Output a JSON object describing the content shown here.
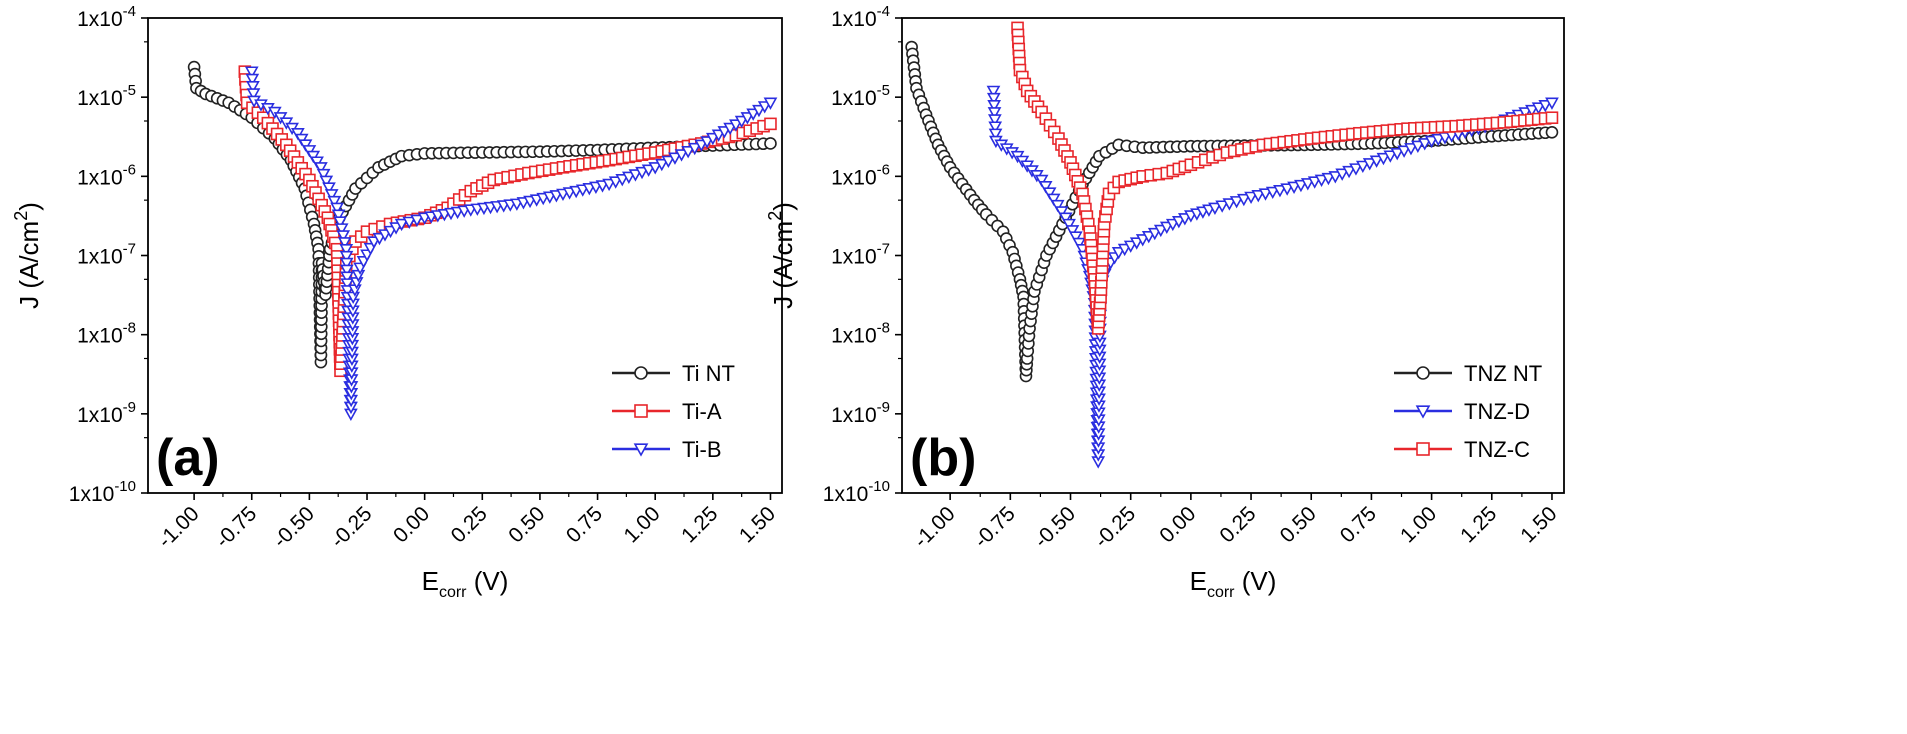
{
  "figure": {
    "background": "#ffffff",
    "colors": {
      "black": "#222222",
      "red": "#e8262b",
      "blue": "#2a2ee0"
    }
  },
  "chart_data": [
    {
      "type": "line",
      "panel_label": "(a)",
      "title": "",
      "xlabel": {
        "main": "E",
        "sub": "corr",
        "unit": " (V)"
      },
      "ylabel": {
        "prefix": "J (A/cm",
        "sup": "2",
        "suffix": ")"
      },
      "xlim": [
        -1.2,
        1.55
      ],
      "ylim_log10": [
        -10,
        -4
      ],
      "yscale": "log",
      "x_ticks": [
        -1.0,
        -0.75,
        -0.5,
        -0.25,
        0.0,
        0.25,
        0.5,
        0.75,
        1.0,
        1.25,
        1.5
      ],
      "x_tick_labels": [
        "-1.00",
        "-0.75",
        "-0.50",
        "-0.25",
        "0.00",
        "0.25",
        "0.50",
        "0.75",
        "1.00",
        "1.25",
        "1.50"
      ],
      "y_ticks_log10": [
        -10,
        -9,
        -8,
        -7,
        -6,
        -5,
        -4
      ],
      "y_tick_labels": [
        {
          "base": "1x10",
          "exp": "-10"
        },
        {
          "base": "1x10",
          "exp": "-9"
        },
        {
          "base": "1x10",
          "exp": "-8"
        },
        {
          "base": "1x10",
          "exp": "-7"
        },
        {
          "base": "1x10",
          "exp": "-6"
        },
        {
          "base": "1x10",
          "exp": "-5"
        },
        {
          "base": "1x10",
          "exp": "-4"
        }
      ],
      "legend_position": "bottom-right",
      "series": [
        {
          "name": "Ti NT",
          "color": "#222222",
          "marker": "circle",
          "points": [
            [
              -1.0,
              2.4e-05
            ],
            [
              -0.99,
              1.3e-05
            ],
            [
              -0.95,
              1.1e-05
            ],
            [
              -0.85,
              8.5e-06
            ],
            [
              -0.75,
              5.5e-06
            ],
            [
              -0.65,
              3e-06
            ],
            [
              -0.58,
              1.6e-06
            ],
            [
              -0.52,
              7e-07
            ],
            [
              -0.48,
              2.5e-07
            ],
            [
              -0.46,
              1.2e-07
            ],
            [
              -0.45,
              4.5e-09
            ],
            [
              -0.445,
              8e-08
            ],
            [
              -0.43,
              3.2e-08
            ],
            [
              -0.41,
              1.2e-07
            ],
            [
              -0.37,
              3e-07
            ],
            [
              -0.3,
              7e-07
            ],
            [
              -0.2,
              1.3e-06
            ],
            [
              -0.1,
              1.8e-06
            ],
            [
              0.0,
              1.95e-06
            ],
            [
              0.25,
              2e-06
            ],
            [
              0.5,
              2.05e-06
            ],
            [
              0.75,
              2.15e-06
            ],
            [
              1.0,
              2.3e-06
            ],
            [
              1.25,
              2.45e-06
            ],
            [
              1.5,
              2.6e-06
            ]
          ]
        },
        {
          "name": "Ti-A",
          "color": "#e8262b",
          "marker": "square",
          "points": [
            [
              -0.78,
              2.1e-05
            ],
            [
              -0.77,
              8.5e-06
            ],
            [
              -0.7,
              5.5e-06
            ],
            [
              -0.6,
              2.5e-06
            ],
            [
              -0.5,
              9e-07
            ],
            [
              -0.42,
              3e-07
            ],
            [
              -0.38,
              1.2e-07
            ],
            [
              -0.365,
              3.5e-09
            ],
            [
              -0.355,
              1.2e-08
            ],
            [
              -0.34,
              8e-08
            ],
            [
              -0.3,
              1.5e-07
            ],
            [
              -0.25,
              2e-07
            ],
            [
              -0.15,
              2.5e-07
            ],
            [
              0.0,
              3e-07
            ],
            [
              0.1,
              4e-07
            ],
            [
              0.2,
              6.5e-07
            ],
            [
              0.3,
              9e-07
            ],
            [
              0.45,
              1.1e-06
            ],
            [
              0.6,
              1.3e-06
            ],
            [
              0.8,
              1.6e-06
            ],
            [
              1.0,
              2e-06
            ],
            [
              1.2,
              2.6e-06
            ],
            [
              1.35,
              3.3e-06
            ],
            [
              1.5,
              4.6e-06
            ]
          ]
        },
        {
          "name": "Ti-B",
          "color": "#2a2ee0",
          "marker": "triangle-down",
          "points": [
            [
              -0.75,
              2.1e-05
            ],
            [
              -0.74,
              9e-06
            ],
            [
              -0.65,
              6.5e-06
            ],
            [
              -0.55,
              3.5e-06
            ],
            [
              -0.45,
              1.3e-06
            ],
            [
              -0.38,
              4e-07
            ],
            [
              -0.34,
              1.2e-07
            ],
            [
              -0.32,
              1e-09
            ],
            [
              -0.31,
              3e-08
            ],
            [
              -0.28,
              7e-08
            ],
            [
              -0.22,
              1.5e-07
            ],
            [
              -0.1,
              2.5e-07
            ],
            [
              0.0,
              3e-07
            ],
            [
              0.2,
              3.8e-07
            ],
            [
              0.4,
              4.5e-07
            ],
            [
              0.6,
              6e-07
            ],
            [
              0.8,
              8e-07
            ],
            [
              1.0,
              1.3e-06
            ],
            [
              1.2,
              2.5e-06
            ],
            [
              1.35,
              4.5e-06
            ],
            [
              1.5,
              8.5e-06
            ]
          ]
        }
      ]
    },
    {
      "type": "line",
      "panel_label": "(b)",
      "title": "",
      "xlabel": {
        "main": "E",
        "sub": "corr",
        "unit": " (V)"
      },
      "ylabel": {
        "prefix": "J (A/cm",
        "sup": "2",
        "suffix": ")"
      },
      "xlim": [
        -1.2,
        1.55
      ],
      "ylim_log10": [
        -10,
        -4
      ],
      "yscale": "log",
      "x_ticks": [
        -1.0,
        -0.75,
        -0.5,
        -0.25,
        0.0,
        0.25,
        0.5,
        0.75,
        1.0,
        1.25,
        1.5
      ],
      "x_tick_labels": [
        "-1.00",
        "-0.75",
        "-0.50",
        "-0.25",
        "0.00",
        "0.25",
        "0.50",
        "0.75",
        "1.00",
        "1.25",
        "1.50"
      ],
      "y_ticks_log10": [
        -10,
        -9,
        -8,
        -7,
        -6,
        -5,
        -4
      ],
      "y_tick_labels": [
        {
          "base": "1x10",
          "exp": "-10"
        },
        {
          "base": "1x10",
          "exp": "-9"
        },
        {
          "base": "1x10",
          "exp": "-8"
        },
        {
          "base": "1x10",
          "exp": "-7"
        },
        {
          "base": "1x10",
          "exp": "-6"
        },
        {
          "base": "1x10",
          "exp": "-5"
        },
        {
          "base": "1x10",
          "exp": "-4"
        }
      ],
      "legend_position": "bottom-right",
      "series": [
        {
          "name": "TNZ NT",
          "color": "#222222",
          "marker": "circle",
          "points": [
            [
              -1.16,
              4.3e-05
            ],
            [
              -1.14,
              1.3e-05
            ],
            [
              -1.1,
              6e-06
            ],
            [
              -1.05,
              2.5e-06
            ],
            [
              -1.0,
              1.3e-06
            ],
            [
              -0.95,
              8e-07
            ],
            [
              -0.9,
              5e-07
            ],
            [
              -0.85,
              3.3e-07
            ],
            [
              -0.78,
              2e-07
            ],
            [
              -0.74,
              1.1e-07
            ],
            [
              -0.71,
              5e-08
            ],
            [
              -0.695,
              3e-08
            ],
            [
              -0.685,
              3e-09
            ],
            [
              -0.68,
              5e-09
            ],
            [
              -0.67,
              1.2e-08
            ],
            [
              -0.65,
              3.5e-08
            ],
            [
              -0.6,
              1e-07
            ],
            [
              -0.52,
              3e-07
            ],
            [
              -0.45,
              8e-07
            ],
            [
              -0.38,
              1.8e-06
            ],
            [
              -0.3,
              2.5e-06
            ],
            [
              -0.2,
              2.3e-06
            ],
            [
              0.0,
              2.4e-06
            ],
            [
              0.25,
              2.45e-06
            ],
            [
              0.5,
              2.5e-06
            ],
            [
              0.75,
              2.6e-06
            ],
            [
              1.0,
              2.8e-06
            ],
            [
              1.25,
              3.2e-06
            ],
            [
              1.5,
              3.6e-06
            ]
          ]
        },
        {
          "name": "TNZ-D",
          "color": "#2a2ee0",
          "marker": "triangle-down",
          "points": [
            [
              -0.82,
              1.2e-05
            ],
            [
              -0.81,
              2.8e-06
            ],
            [
              -0.72,
              1.8e-06
            ],
            [
              -0.62,
              9e-07
            ],
            [
              -0.52,
              3e-07
            ],
            [
              -0.45,
              1.2e-07
            ],
            [
              -0.42,
              5.5e-08
            ],
            [
              -0.4,
              2.5e-08
            ],
            [
              -0.385,
              2.5e-10
            ],
            [
              -0.375,
              4e-08
            ],
            [
              -0.35,
              7e-08
            ],
            [
              -0.3,
              1.1e-07
            ],
            [
              -0.2,
              1.6e-07
            ],
            [
              -0.1,
              2.3e-07
            ],
            [
              0.0,
              3.2e-07
            ],
            [
              0.1,
              4e-07
            ],
            [
              0.25,
              5.5e-07
            ],
            [
              0.4,
              7e-07
            ],
            [
              0.6,
              1e-06
            ],
            [
              0.8,
              1.7e-06
            ],
            [
              1.0,
              2.8e-06
            ],
            [
              1.25,
              4.5e-06
            ],
            [
              1.5,
              8.5e-06
            ]
          ]
        },
        {
          "name": "TNZ-C",
          "color": "#e8262b",
          "marker": "square",
          "points": [
            [
              -0.72,
              7.5e-05
            ],
            [
              -0.71,
              2.2e-05
            ],
            [
              -0.68,
              1.2e-05
            ],
            [
              -0.62,
              6.5e-06
            ],
            [
              -0.55,
              3e-06
            ],
            [
              -0.5,
              1.5e-06
            ],
            [
              -0.45,
              6e-07
            ],
            [
              -0.42,
              2e-07
            ],
            [
              -0.4,
              5e-08
            ],
            [
              -0.385,
              1.2e-08
            ],
            [
              -0.375,
              3e-08
            ],
            [
              -0.36,
              2.5e-07
            ],
            [
              -0.34,
              6e-07
            ],
            [
              -0.3,
              8.5e-07
            ],
            [
              -0.2,
              1e-06
            ],
            [
              -0.1,
              1.1e-06
            ],
            [
              0.0,
              1.4e-06
            ],
            [
              0.15,
              2e-06
            ],
            [
              0.3,
              2.5e-06
            ],
            [
              0.5,
              3e-06
            ],
            [
              0.7,
              3.5e-06
            ],
            [
              0.9,
              4e-06
            ],
            [
              1.1,
              4.3e-06
            ],
            [
              1.3,
              4.8e-06
            ],
            [
              1.5,
              5.5e-06
            ]
          ]
        }
      ]
    }
  ]
}
